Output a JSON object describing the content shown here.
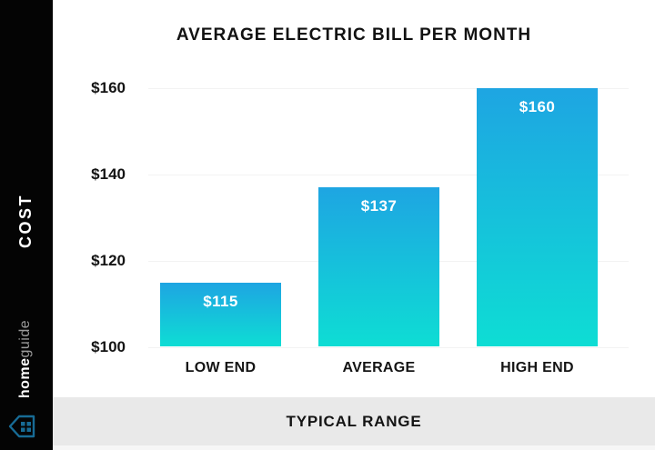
{
  "sidebar": {
    "cost_label": "COST",
    "brand": {
      "bold": "home",
      "light": "guide"
    }
  },
  "footer": {
    "label": "TYPICAL RANGE"
  },
  "chart_data": {
    "type": "bar",
    "title": "AVERAGE ELECTRIC BILL PER MONTH",
    "categories": [
      "LOW END",
      "AVERAGE",
      "HIGH END"
    ],
    "values": [
      115,
      137,
      160
    ],
    "value_labels": [
      "$115",
      "$137",
      "$160"
    ],
    "y_ticks": [
      {
        "value": 160,
        "label": "$160"
      },
      {
        "value": 140,
        "label": "$140"
      },
      {
        "value": 120,
        "label": "$120"
      },
      {
        "value": 100,
        "label": "$100"
      }
    ],
    "ylim": [
      100,
      160
    ],
    "xlabel": "TYPICAL RANGE",
    "ylabel": "COST",
    "grid": true,
    "legend": "none",
    "bar_gradient_top": "#1ea5e2",
    "bar_gradient_bottom": "#0eddd4"
  },
  "colors": {
    "sidebar_bg": "#040404",
    "footer_bg": "#e9e9e9",
    "gridline": "#f2f2f2",
    "text_dark": "#141414",
    "bar_label_text": "#ffffff",
    "logo_blue": "#176b95"
  }
}
